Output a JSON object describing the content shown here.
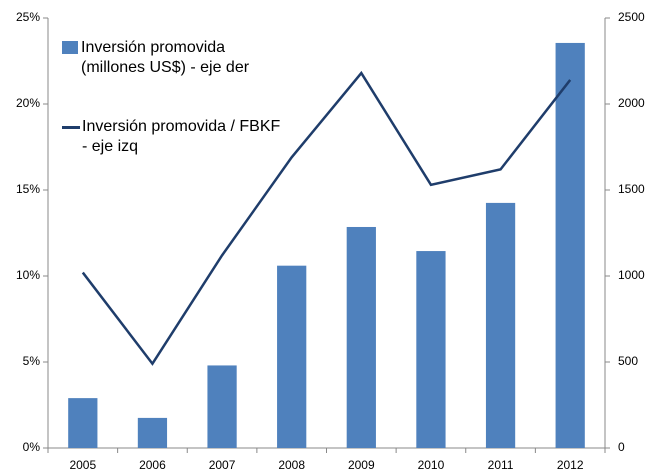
{
  "chart_data": {
    "type": "bar-line",
    "categories": [
      "2005",
      "2006",
      "2007",
      "2008",
      "2009",
      "2010",
      "2011",
      "2012"
    ],
    "series": [
      {
        "name": "Inversión promovida (millones US$) - eje der",
        "type": "bar",
        "axis": "y2",
        "color": "#4f81bd",
        "values": [
          290,
          175,
          480,
          1060,
          1285,
          1145,
          1425,
          2355
        ]
      },
      {
        "name": "Inversión promovida / FBKF - eje izq",
        "type": "line",
        "axis": "y",
        "color": "#1f3d6b",
        "values": [
          10.2,
          4.9,
          11.2,
          16.9,
          21.8,
          15.3,
          16.2,
          21.4
        ]
      }
    ],
    "ylim": [
      0,
      25
    ],
    "yticks": [
      {
        "value": 0,
        "label": "0%"
      },
      {
        "value": 5,
        "label": "5%"
      },
      {
        "value": 10,
        "label": "10%"
      },
      {
        "value": 15,
        "label": "15%"
      },
      {
        "value": 20,
        "label": "20%"
      },
      {
        "value": 25,
        "label": "25%"
      }
    ],
    "y2lim": [
      0,
      2500
    ],
    "y2ticks": [
      0,
      500,
      1000,
      1500,
      2000,
      2500
    ],
    "legend": "upper-left"
  }
}
